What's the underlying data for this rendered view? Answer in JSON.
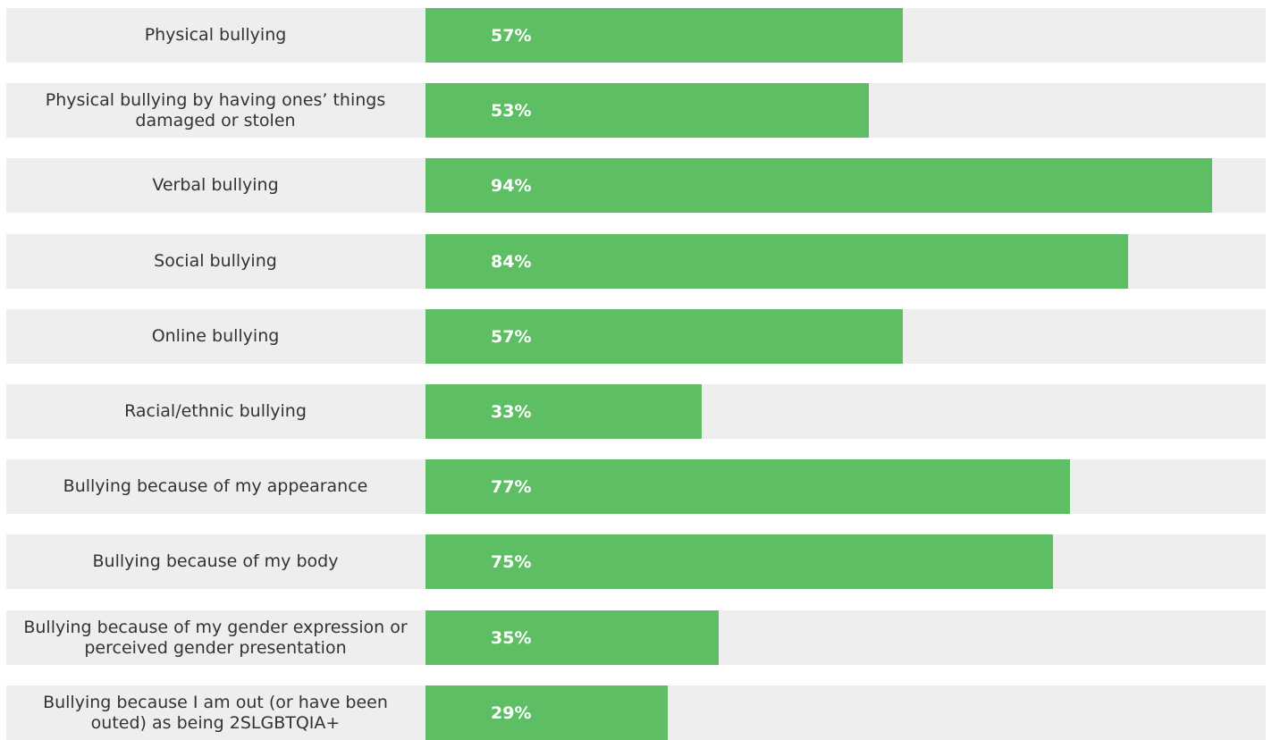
{
  "chart_data": {
    "type": "bar",
    "orientation": "horizontal",
    "categories": [
      "Physical bullying",
      "Physical bullying by having ones’ things damaged or stolen",
      "Verbal bullying",
      "Social bullying",
      "Online bullying",
      "Racial/ethnic bullying",
      "Bullying because of my appearance",
      "Bullying because of my body",
      "Bullying because of my gender expression or perceived gender presentation",
      "Bullying because I am out (or have been outed) as being 2SLGBTQIA+"
    ],
    "values": [
      57,
      53,
      94,
      84,
      57,
      33,
      77,
      75,
      35,
      29
    ],
    "value_labels": [
      "57%",
      "53%",
      "94%",
      "84%",
      "57%",
      "33%",
      "77%",
      "75%",
      "35%",
      "29%"
    ],
    "xlim": [
      0,
      100
    ],
    "colors": {
      "bar": "#5ebe64",
      "track": "#eeeeee",
      "label_text": "#333333",
      "value_text": "#ffffff"
    },
    "grid": false,
    "legend": "none"
  }
}
